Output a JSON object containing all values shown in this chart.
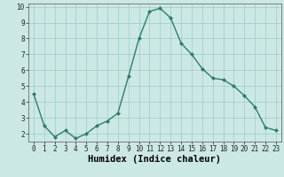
{
  "x": [
    0,
    1,
    2,
    3,
    4,
    5,
    6,
    7,
    8,
    9,
    10,
    11,
    12,
    13,
    14,
    15,
    16,
    17,
    18,
    19,
    20,
    21,
    22,
    23
  ],
  "y": [
    4.5,
    2.5,
    1.8,
    2.2,
    1.7,
    2.0,
    2.5,
    2.8,
    3.3,
    5.6,
    8.0,
    9.7,
    9.9,
    9.3,
    7.7,
    7.0,
    6.1,
    5.5,
    5.4,
    5.0,
    4.4,
    3.7,
    2.4,
    2.2
  ],
  "line_color": "#2e7d6e",
  "marker": "D",
  "marker_size": 2.0,
  "bg_color": "#cce8e5",
  "grid_color": "#99ccc8",
  "xlabel": "Humidex (Indice chaleur)",
  "ylim": [
    1.5,
    10.2
  ],
  "xlim": [
    -0.5,
    23.5
  ],
  "yticks": [
    2,
    3,
    4,
    5,
    6,
    7,
    8,
    9,
    10
  ],
  "xticks": [
    0,
    1,
    2,
    3,
    4,
    5,
    6,
    7,
    8,
    9,
    10,
    11,
    12,
    13,
    14,
    15,
    16,
    17,
    18,
    19,
    20,
    21,
    22,
    23
  ],
  "tick_label_fontsize": 5.5,
  "xlabel_fontsize": 7.5,
  "linewidth": 1.0
}
